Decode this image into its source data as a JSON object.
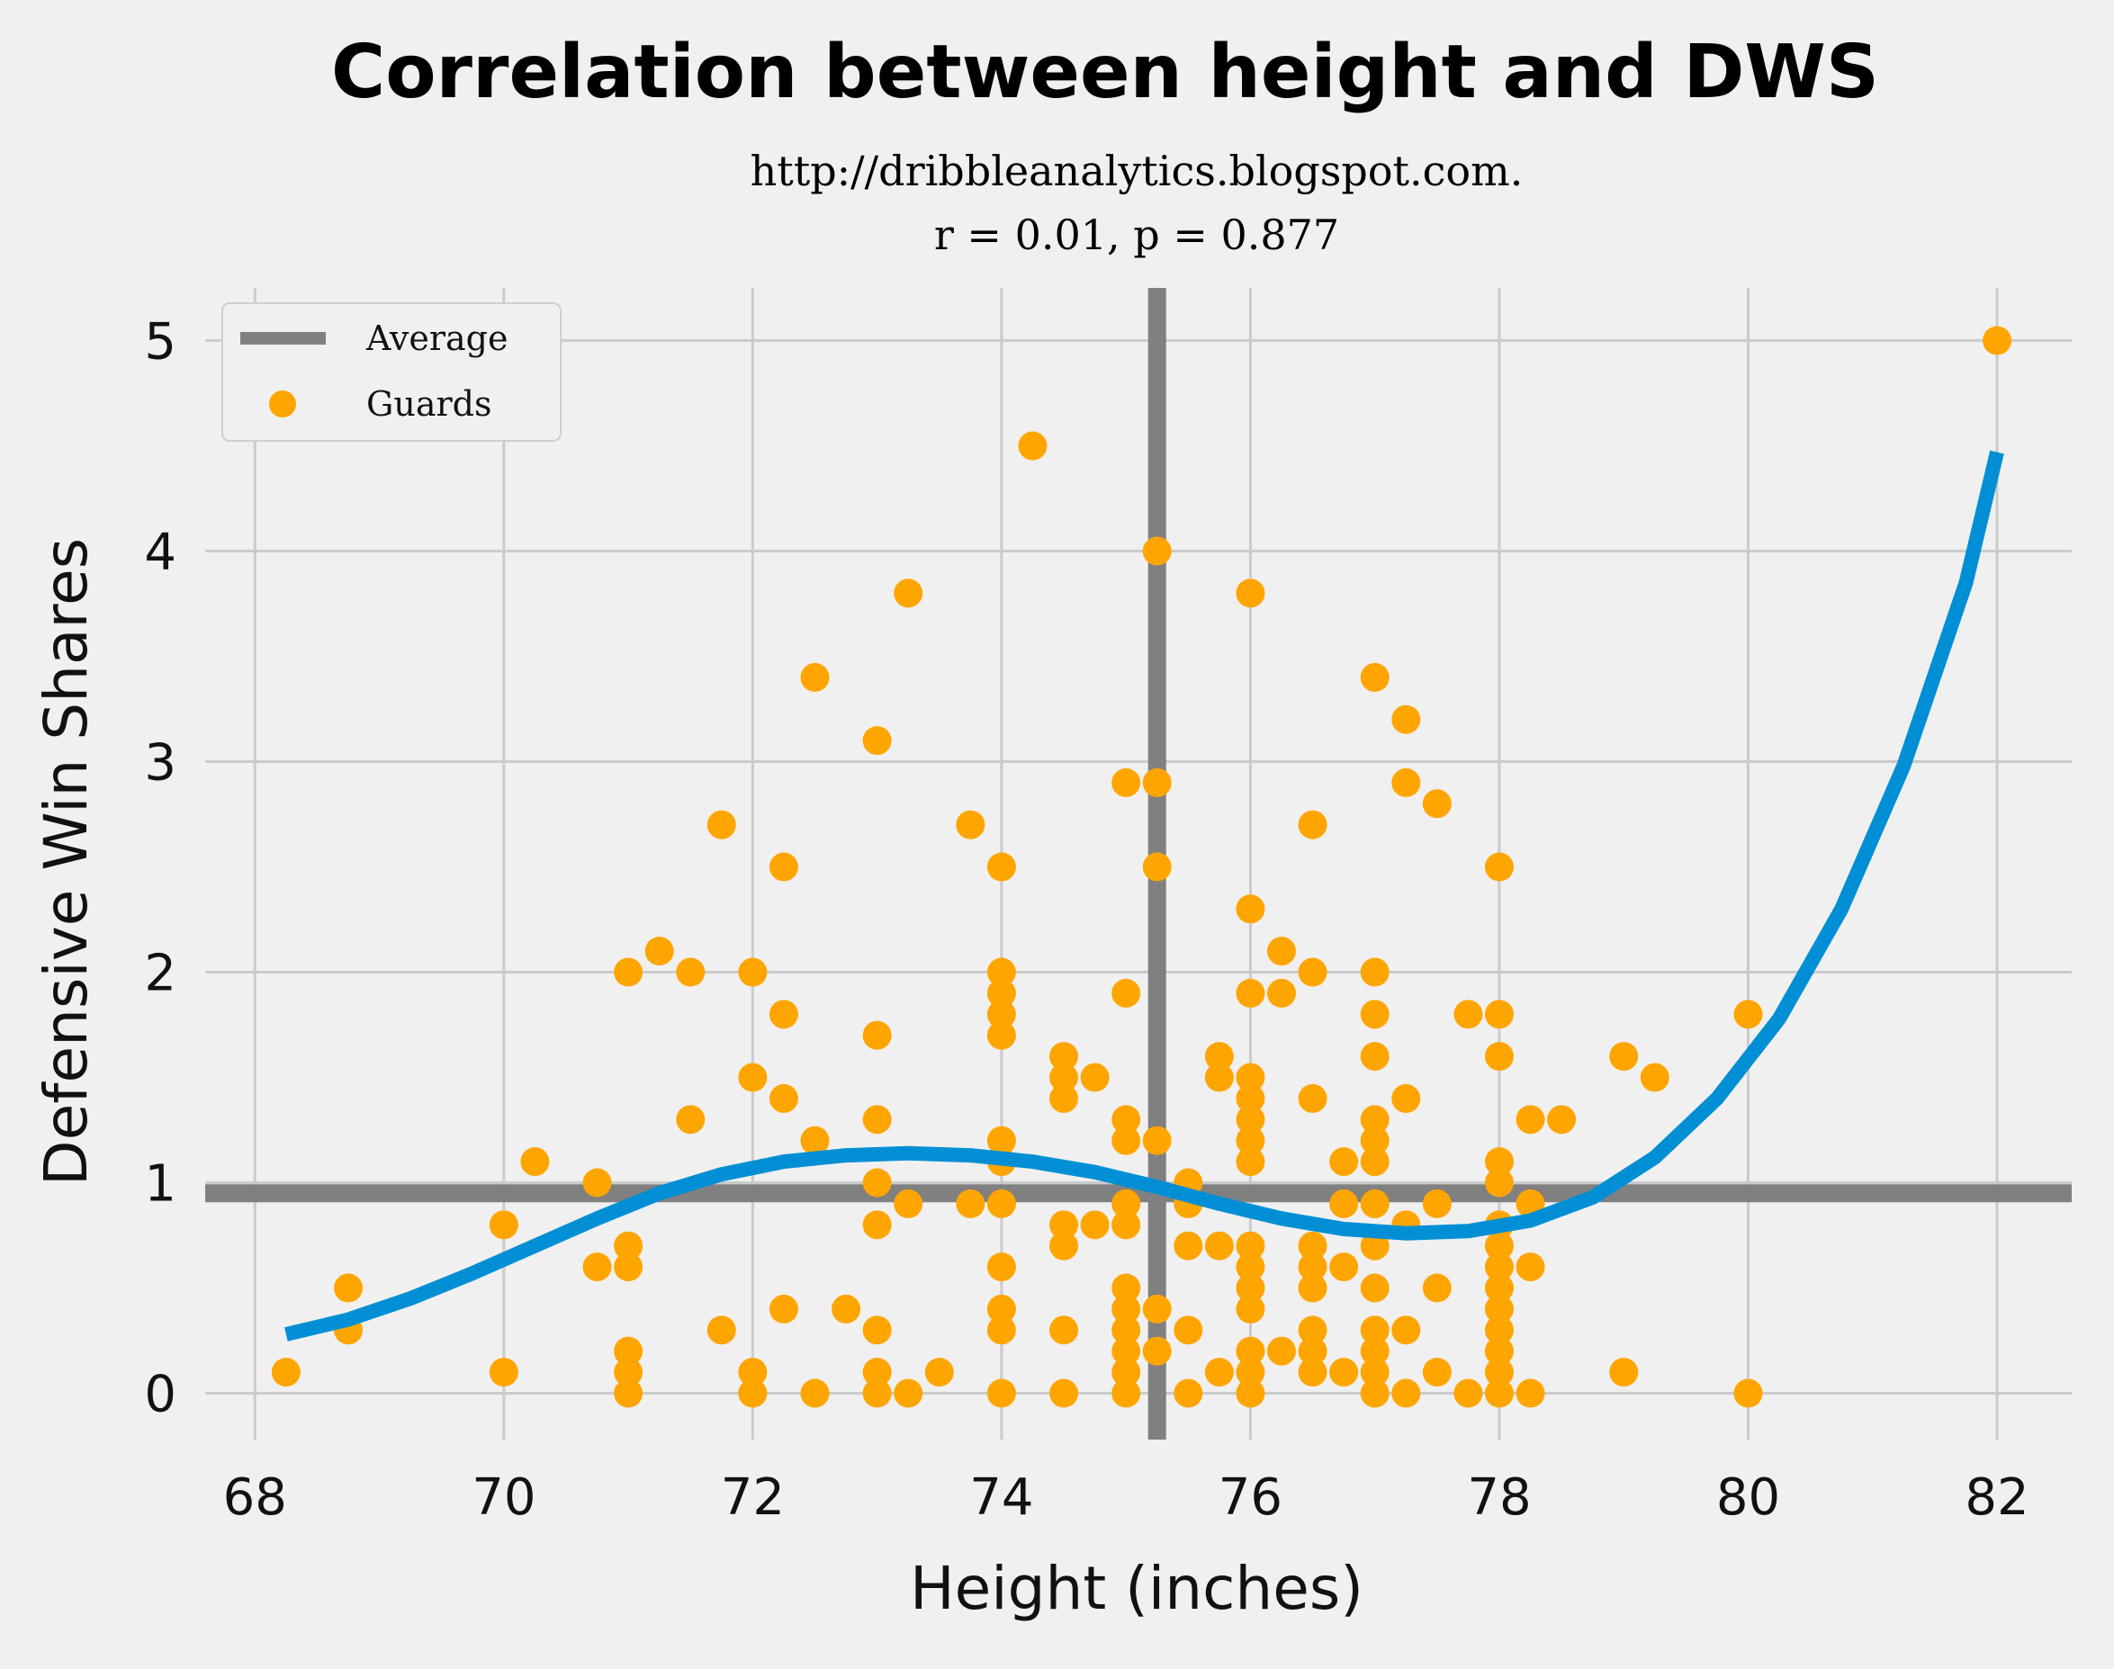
{
  "chart_data": {
    "type": "scatter",
    "title": "Correlation between height and DWS",
    "subtitle_lines": [
      "http://dribbleanalytics.blogspot.com.",
      "r = 0.01, p = 0.877"
    ],
    "xlabel": "Height (inches)",
    "ylabel": "Defensive Win Shares",
    "xlim": [
      67.6,
      82.6
    ],
    "ylim": [
      -0.22,
      5.25
    ],
    "xticks": [
      68,
      70,
      72,
      74,
      76,
      78,
      80,
      82
    ],
    "yticks": [
      0,
      1,
      2,
      3,
      4,
      5
    ],
    "grid": true,
    "legend": {
      "position": "top-left",
      "entries": [
        {
          "label": "Average",
          "kind": "line",
          "color": "#808080"
        },
        {
          "label": "Guards",
          "kind": "marker",
          "color": "#ffa500"
        }
      ]
    },
    "average": {
      "x": 75.25,
      "y": 0.95
    },
    "colors": {
      "points": "#ffa500",
      "average": "#808080",
      "fit": "#008fd5",
      "background": "#f0f0f0"
    },
    "fit_line": {
      "x": [
        68.25,
        68.75,
        69.25,
        69.75,
        70.25,
        70.75,
        71.25,
        71.75,
        72.25,
        72.75,
        73.25,
        73.75,
        74.25,
        74.75,
        75.25,
        75.75,
        76.25,
        76.75,
        77.25,
        77.75,
        78.25,
        78.75,
        79.25,
        79.75,
        80.25,
        80.75,
        81.25,
        81.75,
        82.0
      ],
      "y": [
        0.28,
        0.35,
        0.45,
        0.57,
        0.7,
        0.83,
        0.95,
        1.04,
        1.1,
        1.13,
        1.14,
        1.13,
        1.1,
        1.05,
        0.98,
        0.9,
        0.83,
        0.78,
        0.76,
        0.77,
        0.82,
        0.93,
        1.12,
        1.4,
        1.78,
        2.3,
        2.98,
        3.85,
        4.47
      ]
    },
    "points": [
      [
        68.25,
        0.1
      ],
      [
        68.75,
        0.5
      ],
      [
        68.75,
        0.3
      ],
      [
        70,
        0.8
      ],
      [
        70,
        0.1
      ],
      [
        70.25,
        1.1
      ],
      [
        70.75,
        1.0
      ],
      [
        70.75,
        0.6
      ],
      [
        71,
        2.0
      ],
      [
        71,
        0.7
      ],
      [
        71,
        0.6
      ],
      [
        71,
        0.2
      ],
      [
        71,
        0.1
      ],
      [
        71,
        0.0
      ],
      [
        71.25,
        2.1
      ],
      [
        71.5,
        2.0
      ],
      [
        71.5,
        1.3
      ],
      [
        71.75,
        2.7
      ],
      [
        71.75,
        0.3
      ],
      [
        72,
        2.0
      ],
      [
        72,
        1.5
      ],
      [
        72,
        0.1
      ],
      [
        72,
        0.0
      ],
      [
        72.25,
        2.5
      ],
      [
        72.25,
        1.8
      ],
      [
        72.25,
        1.4
      ],
      [
        72.25,
        0.4
      ],
      [
        72.5,
        3.4
      ],
      [
        72.5,
        1.2
      ],
      [
        72.5,
        0.0
      ],
      [
        72.75,
        0.4
      ],
      [
        73,
        3.1
      ],
      [
        73,
        1.7
      ],
      [
        73,
        1.3
      ],
      [
        73,
        1.0
      ],
      [
        73,
        0.8
      ],
      [
        73,
        0.3
      ],
      [
        73,
        0.1
      ],
      [
        73,
        0.0
      ],
      [
        73.25,
        3.8
      ],
      [
        73.25,
        0.9
      ],
      [
        73.25,
        0.0
      ],
      [
        73.5,
        0.1
      ],
      [
        73.75,
        2.7
      ],
      [
        73.75,
        0.9
      ],
      [
        74,
        2.5
      ],
      [
        74,
        2.0
      ],
      [
        74,
        1.9
      ],
      [
        74,
        1.8
      ],
      [
        74,
        1.7
      ],
      [
        74,
        1.2
      ],
      [
        74,
        1.1
      ],
      [
        74,
        0.9
      ],
      [
        74,
        0.6
      ],
      [
        74,
        0.4
      ],
      [
        74,
        0.3
      ],
      [
        74,
        0.0
      ],
      [
        74.25,
        4.5
      ],
      [
        74.5,
        1.6
      ],
      [
        74.5,
        1.5
      ],
      [
        74.5,
        1.4
      ],
      [
        74.5,
        0.8
      ],
      [
        74.5,
        0.7
      ],
      [
        74.5,
        0.3
      ],
      [
        74.5,
        0.0
      ],
      [
        74.75,
        1.5
      ],
      [
        74.75,
        0.8
      ],
      [
        75,
        2.9
      ],
      [
        75,
        1.9
      ],
      [
        75,
        1.3
      ],
      [
        75,
        1.2
      ],
      [
        75,
        0.9
      ],
      [
        75,
        0.8
      ],
      [
        75,
        0.5
      ],
      [
        75,
        0.4
      ],
      [
        75,
        0.3
      ],
      [
        75,
        0.2
      ],
      [
        75,
        0.1
      ],
      [
        75,
        0.0
      ],
      [
        75.25,
        4.0
      ],
      [
        75.25,
        2.9
      ],
      [
        75.25,
        2.5
      ],
      [
        75.25,
        1.2
      ],
      [
        75.25,
        0.4
      ],
      [
        75.25,
        0.2
      ],
      [
        75.5,
        1.0
      ],
      [
        75.5,
        0.9
      ],
      [
        75.5,
        0.7
      ],
      [
        75.5,
        0.3
      ],
      [
        75.5,
        0.0
      ],
      [
        75.75,
        1.6
      ],
      [
        75.75,
        1.5
      ],
      [
        75.75,
        0.7
      ],
      [
        75.75,
        0.1
      ],
      [
        76,
        3.8
      ],
      [
        76,
        2.3
      ],
      [
        76,
        1.9
      ],
      [
        76,
        1.5
      ],
      [
        76,
        1.4
      ],
      [
        76,
        1.3
      ],
      [
        76,
        1.2
      ],
      [
        76,
        1.1
      ],
      [
        76,
        0.7
      ],
      [
        76,
        0.6
      ],
      [
        76,
        0.5
      ],
      [
        76,
        0.4
      ],
      [
        76,
        0.2
      ],
      [
        76,
        0.1
      ],
      [
        76,
        0.0
      ],
      [
        76.25,
        2.1
      ],
      [
        76.25,
        1.9
      ],
      [
        76.25,
        0.2
      ],
      [
        76.5,
        2.7
      ],
      [
        76.5,
        2.0
      ],
      [
        76.5,
        1.4
      ],
      [
        76.5,
        0.7
      ],
      [
        76.5,
        0.6
      ],
      [
        76.5,
        0.5
      ],
      [
        76.5,
        0.3
      ],
      [
        76.5,
        0.2
      ],
      [
        76.5,
        0.1
      ],
      [
        76.75,
        1.1
      ],
      [
        76.75,
        0.9
      ],
      [
        76.75,
        0.6
      ],
      [
        76.75,
        0.1
      ],
      [
        77,
        3.4
      ],
      [
        77,
        2.0
      ],
      [
        77,
        1.8
      ],
      [
        77,
        1.6
      ],
      [
        77,
        1.3
      ],
      [
        77,
        1.2
      ],
      [
        77,
        1.1
      ],
      [
        77,
        0.9
      ],
      [
        77,
        0.7
      ],
      [
        77,
        0.5
      ],
      [
        77,
        0.3
      ],
      [
        77,
        0.2
      ],
      [
        77,
        0.1
      ],
      [
        77,
        0.0
      ],
      [
        77.25,
        3.2
      ],
      [
        77.25,
        2.9
      ],
      [
        77.25,
        1.4
      ],
      [
        77.25,
        0.8
      ],
      [
        77.25,
        0.3
      ],
      [
        77.25,
        0.0
      ],
      [
        77.5,
        2.8
      ],
      [
        77.5,
        0.9
      ],
      [
        77.5,
        0.5
      ],
      [
        77.5,
        0.1
      ],
      [
        77.75,
        1.8
      ],
      [
        77.75,
        0.0
      ],
      [
        78,
        2.5
      ],
      [
        78,
        1.8
      ],
      [
        78,
        1.6
      ],
      [
        78,
        1.1
      ],
      [
        78,
        1.0
      ],
      [
        78,
        0.8
      ],
      [
        78,
        0.7
      ],
      [
        78,
        0.6
      ],
      [
        78,
        0.5
      ],
      [
        78,
        0.4
      ],
      [
        78,
        0.3
      ],
      [
        78,
        0.2
      ],
      [
        78,
        0.1
      ],
      [
        78,
        0.0
      ],
      [
        78.25,
        1.3
      ],
      [
        78.25,
        0.9
      ],
      [
        78.25,
        0.6
      ],
      [
        78.25,
        0.0
      ],
      [
        78.5,
        1.3
      ],
      [
        79,
        1.6
      ],
      [
        79,
        0.1
      ],
      [
        79.25,
        1.5
      ],
      [
        80,
        1.8
      ],
      [
        80,
        0.0
      ],
      [
        82,
        5.0
      ]
    ]
  }
}
